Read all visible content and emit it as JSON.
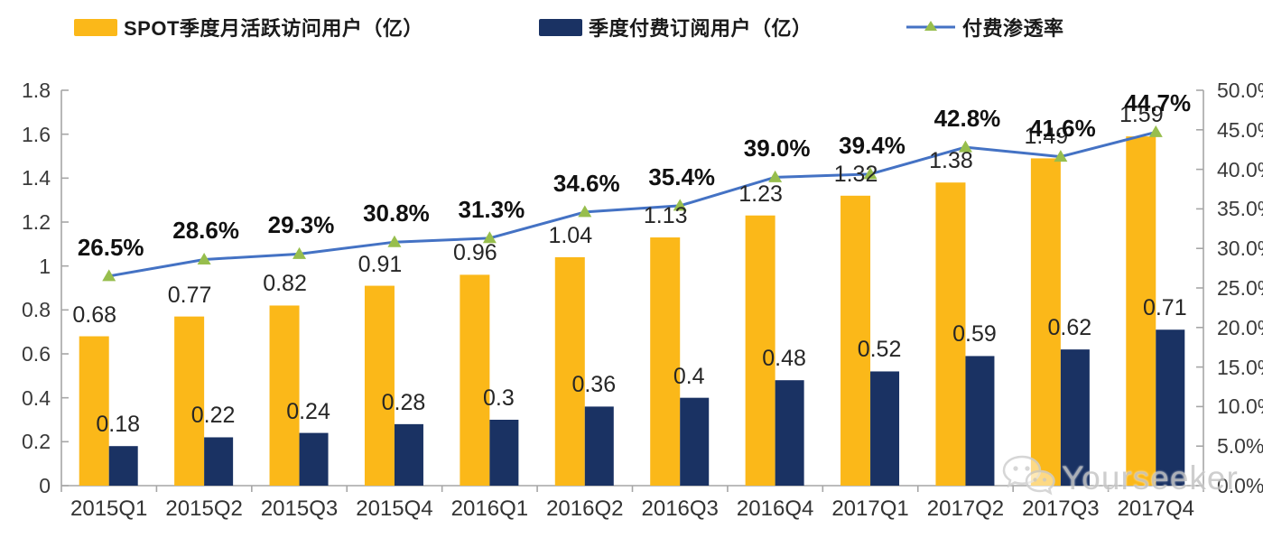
{
  "chart_data": {
    "type": "bar+line",
    "title": "",
    "categories": [
      "2015Q1",
      "2015Q2",
      "2015Q3",
      "2015Q4",
      "2016Q1",
      "2016Q2",
      "2016Q3",
      "2016Q4",
      "2017Q1",
      "2017Q2",
      "2017Q3",
      "2017Q4"
    ],
    "series": [
      {
        "name": "SPOT季度月活跃访问用户（亿）",
        "type": "bar",
        "axis": "left",
        "color": "#FBB819",
        "values": [
          0.68,
          0.77,
          0.82,
          0.91,
          0.96,
          1.04,
          1.13,
          1.23,
          1.32,
          1.38,
          1.49,
          1.59
        ],
        "labels": [
          "0.68",
          "0.77",
          "0.82",
          "0.91",
          "0.96",
          "1.04",
          "1.13",
          "1.23",
          "1.32",
          "1.38",
          "1.49",
          "1.59"
        ]
      },
      {
        "name": "季度付费订阅用户（亿）",
        "type": "bar",
        "axis": "left",
        "color": "#1A3263",
        "values": [
          0.18,
          0.22,
          0.24,
          0.28,
          0.3,
          0.36,
          0.4,
          0.48,
          0.52,
          0.59,
          0.62,
          0.71
        ],
        "labels": [
          "0.18",
          "0.22",
          "0.24",
          "0.28",
          "0.3",
          "0.36",
          "0.4",
          "0.48",
          "0.52",
          "0.59",
          "0.62",
          "0.71"
        ]
      },
      {
        "name": "付费渗透率",
        "type": "line",
        "axis": "right",
        "color": "#4472C4",
        "marker": "triangle",
        "marker_color": "#97BE4D",
        "values": [
          26.5,
          28.6,
          29.3,
          30.8,
          31.3,
          34.6,
          35.4,
          39.0,
          39.4,
          42.8,
          41.6,
          44.7
        ],
        "labels": [
          "26.5%",
          "28.6%",
          "29.3%",
          "30.8%",
          "31.3%",
          "34.6%",
          "35.4%",
          "39.0%",
          "39.4%",
          "42.8%",
          "41.6%",
          "44.7%"
        ]
      }
    ],
    "left_axis": {
      "min": 0,
      "max": 1.8,
      "tick_labels": [
        "1.8",
        "1.6",
        "1.4",
        "1.2",
        "1",
        "0.8",
        "0.6",
        "0.4",
        "0.2",
        "0"
      ]
    },
    "right_axis": {
      "min": 0,
      "max": 50,
      "unit": "%",
      "tick_labels": [
        "50.0%",
        "45.0%",
        "40.0%",
        "35.0%",
        "30.0%",
        "25.0%",
        "20.0%",
        "15.0%",
        "10.0%",
        "5.0%",
        "0.0%"
      ]
    },
    "grid": false,
    "legend_position": "top",
    "axis_color": "#A6A6A6"
  },
  "watermark": {
    "text": "Yourseeker",
    "icon": "wechat-icon"
  }
}
